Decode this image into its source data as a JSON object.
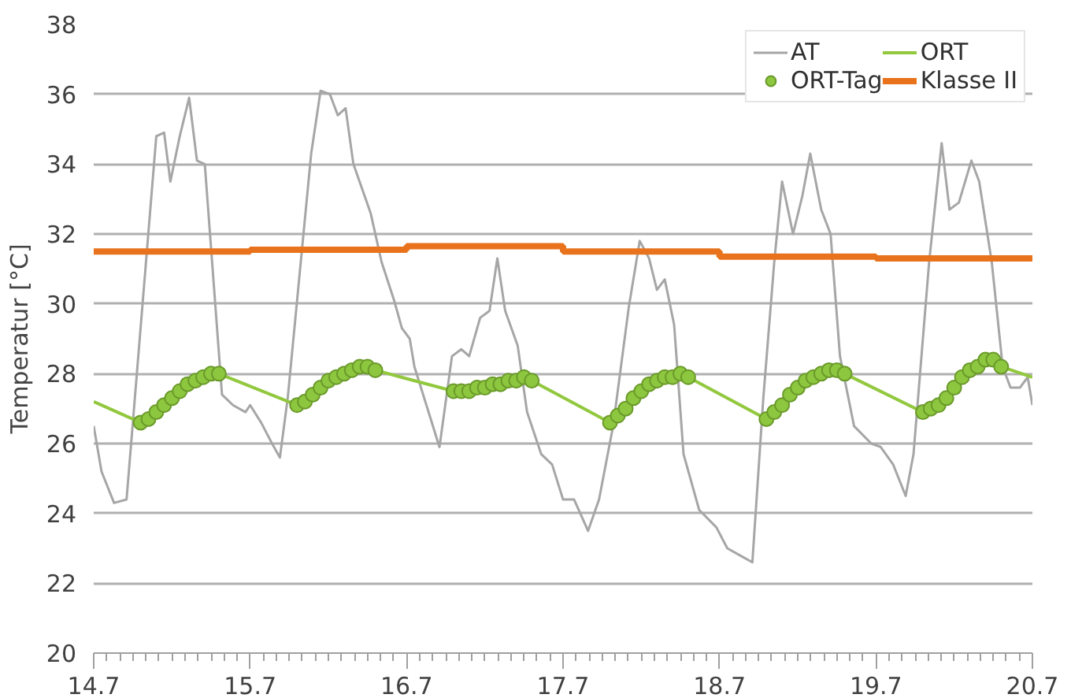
{
  "chart_data": {
    "type": "line",
    "ylabel": "Temperatur [°C]",
    "xlim": [
      14.7,
      20.7
    ],
    "xticks": [
      14.7,
      15.7,
      16.7,
      17.7,
      18.7,
      19.7,
      20.7
    ],
    "ylim": [
      20,
      38
    ],
    "yticks": [
      20,
      22,
      24,
      26,
      28,
      30,
      32,
      34,
      36,
      38
    ],
    "grid": "y",
    "legend": "top right",
    "line_style": "solid",
    "series": [
      {
        "name": "AT",
        "color": "#a6a6a6",
        "x": [
          14.7,
          14.75,
          14.83,
          14.91,
          15.1,
          15.15,
          15.19,
          15.25,
          15.31,
          15.36,
          15.41,
          15.47,
          15.52,
          15.59,
          15.67,
          15.7,
          15.77,
          15.84,
          15.89,
          15.94,
          16.09,
          16.15,
          16.21,
          16.26,
          16.31,
          16.36,
          16.47,
          16.54,
          16.62,
          16.67,
          16.72,
          16.75,
          16.91,
          16.99,
          17.05,
          17.1,
          17.17,
          17.23,
          17.28,
          17.33,
          17.41,
          17.47,
          17.56,
          17.63,
          17.7,
          17.77,
          17.86,
          17.93,
          18.02,
          18.12,
          18.19,
          18.25,
          18.3,
          18.35,
          18.41,
          18.47,
          18.57,
          18.68,
          18.75,
          18.83,
          18.91,
          18.98,
          19.05,
          19.1,
          19.17,
          19.23,
          19.28,
          19.35,
          19.41,
          19.47,
          19.56,
          19.67,
          19.73,
          19.81,
          19.89,
          19.94,
          20.04,
          20.12,
          20.17,
          20.23,
          20.31,
          20.36,
          20.44,
          20.51,
          20.56,
          20.62,
          20.67,
          20.7
        ],
        "values": [
          26.5,
          25.2,
          24.3,
          24.4,
          34.8,
          34.9,
          33.5,
          34.8,
          35.9,
          34.1,
          34.0,
          30.4,
          27.4,
          27.1,
          26.9,
          27.1,
          26.6,
          26.0,
          25.6,
          27.3,
          34.3,
          36.1,
          36.0,
          35.4,
          35.6,
          34.0,
          32.6,
          31.2,
          30.1,
          29.3,
          29.0,
          28.2,
          25.9,
          28.5,
          28.7,
          28.5,
          29.6,
          29.8,
          31.3,
          29.8,
          28.8,
          26.9,
          25.7,
          25.4,
          24.4,
          24.4,
          23.5,
          24.4,
          26.5,
          29.9,
          31.8,
          31.3,
          30.4,
          30.7,
          29.4,
          25.7,
          24.1,
          23.6,
          23.0,
          22.8,
          22.6,
          27.3,
          31.2,
          33.5,
          32.0,
          33.1,
          34.3,
          32.7,
          32.0,
          28.5,
          26.5,
          26.0,
          25.9,
          25.4,
          24.5,
          25.7,
          31.2,
          34.6,
          32.7,
          32.9,
          34.1,
          33.5,
          31.2,
          28.2,
          27.6,
          27.6,
          27.9,
          27.1
        ]
      },
      {
        "name": "ORT",
        "color": "#92c83e",
        "x": [
          14.7,
          15.0,
          15.05,
          15.1,
          15.15,
          15.2,
          15.25,
          15.3,
          15.35,
          15.4,
          15.45,
          15.5,
          16.0,
          16.05,
          16.1,
          16.15,
          16.2,
          16.25,
          16.3,
          16.35,
          16.4,
          16.45,
          16.5,
          17.0,
          17.05,
          17.1,
          17.15,
          17.2,
          17.25,
          17.3,
          17.35,
          17.4,
          17.45,
          17.5,
          18.0,
          18.05,
          18.1,
          18.15,
          18.2,
          18.25,
          18.3,
          18.35,
          18.4,
          18.45,
          18.5,
          19.0,
          19.05,
          19.1,
          19.15,
          19.2,
          19.25,
          19.3,
          19.35,
          19.4,
          19.45,
          19.5,
          20.0,
          20.05,
          20.1,
          20.15,
          20.2,
          20.25,
          20.3,
          20.35,
          20.4,
          20.45,
          20.5,
          20.7
        ],
        "values": [
          27.2,
          26.6,
          26.7,
          26.9,
          27.1,
          27.3,
          27.5,
          27.7,
          27.8,
          27.9,
          28.0,
          28.0,
          27.1,
          27.2,
          27.4,
          27.6,
          27.8,
          27.9,
          28.0,
          28.1,
          28.2,
          28.2,
          28.1,
          27.5,
          27.5,
          27.5,
          27.6,
          27.6,
          27.7,
          27.7,
          27.8,
          27.8,
          27.9,
          27.8,
          26.6,
          26.8,
          27.0,
          27.3,
          27.5,
          27.7,
          27.8,
          27.9,
          27.9,
          28.0,
          27.9,
          26.7,
          26.9,
          27.1,
          27.4,
          27.6,
          27.8,
          27.9,
          28.0,
          28.1,
          28.1,
          28.0,
          26.9,
          27.0,
          27.1,
          27.3,
          27.6,
          27.9,
          28.1,
          28.2,
          28.4,
          28.4,
          28.2,
          27.9
        ]
      },
      {
        "name": "ORT-Tag",
        "type": "scatter",
        "marker": "circle",
        "color": "#8dc63f",
        "x": [
          15.0,
          15.05,
          15.1,
          15.15,
          15.2,
          15.25,
          15.3,
          15.35,
          15.4,
          15.45,
          15.5,
          16.0,
          16.05,
          16.1,
          16.15,
          16.2,
          16.25,
          16.3,
          16.35,
          16.4,
          16.45,
          16.5,
          17.0,
          17.05,
          17.1,
          17.15,
          17.2,
          17.25,
          17.3,
          17.35,
          17.4,
          17.45,
          17.5,
          18.0,
          18.05,
          18.1,
          18.15,
          18.2,
          18.25,
          18.3,
          18.35,
          18.4,
          18.45,
          18.5,
          19.0,
          19.05,
          19.1,
          19.15,
          19.2,
          19.25,
          19.3,
          19.35,
          19.4,
          19.45,
          19.5,
          20.0,
          20.05,
          20.1,
          20.15,
          20.2,
          20.25,
          20.3,
          20.35,
          20.4,
          20.45,
          20.5
        ],
        "values": [
          26.6,
          26.7,
          26.9,
          27.1,
          27.3,
          27.5,
          27.7,
          27.8,
          27.9,
          28.0,
          28.0,
          27.1,
          27.2,
          27.4,
          27.6,
          27.8,
          27.9,
          28.0,
          28.1,
          28.2,
          28.2,
          28.1,
          27.5,
          27.5,
          27.5,
          27.6,
          27.6,
          27.7,
          27.7,
          27.8,
          27.8,
          27.9,
          27.8,
          26.6,
          26.8,
          27.0,
          27.3,
          27.5,
          27.7,
          27.8,
          27.9,
          27.9,
          28.0,
          27.9,
          26.7,
          26.9,
          27.1,
          27.4,
          27.6,
          27.8,
          27.9,
          28.0,
          28.1,
          28.1,
          28.0,
          26.9,
          27.0,
          27.1,
          27.3,
          27.6,
          27.9,
          28.1,
          28.2,
          28.4,
          28.4,
          28.2
        ]
      },
      {
        "name": "Klasse II",
        "type": "step",
        "color": "#e8731c",
        "x": [
          14.7,
          15.7,
          16.7,
          17.7,
          18.7,
          19.7,
          20.7
        ],
        "values": [
          31.5,
          31.55,
          31.65,
          31.5,
          31.35,
          31.3,
          31.3
        ]
      }
    ]
  }
}
